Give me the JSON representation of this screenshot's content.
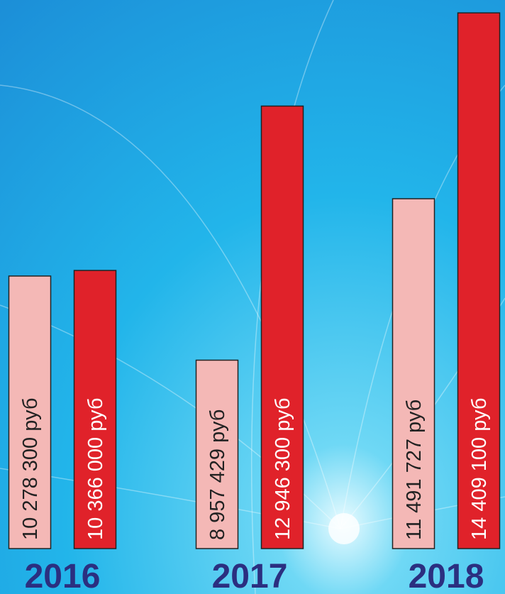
{
  "chart_data": {
    "type": "bar",
    "categories": [
      "2016",
      "2017",
      "2018"
    ],
    "series": [
      {
        "color": "#f4b8b6",
        "values": [
          10278300,
          8957429,
          11491727
        ],
        "value_labels": [
          "10 278 300 руб",
          "8 957 429 руб",
          "11 491 727 руб"
        ]
      },
      {
        "color": "#e0222a",
        "values": [
          10366000,
          12946300,
          14409100
        ],
        "value_labels": [
          "10 366 000 руб",
          "12 946 300 руб",
          "14 409 100 руб"
        ]
      }
    ],
    "ylim": [
      6000000,
      14500000
    ]
  }
}
